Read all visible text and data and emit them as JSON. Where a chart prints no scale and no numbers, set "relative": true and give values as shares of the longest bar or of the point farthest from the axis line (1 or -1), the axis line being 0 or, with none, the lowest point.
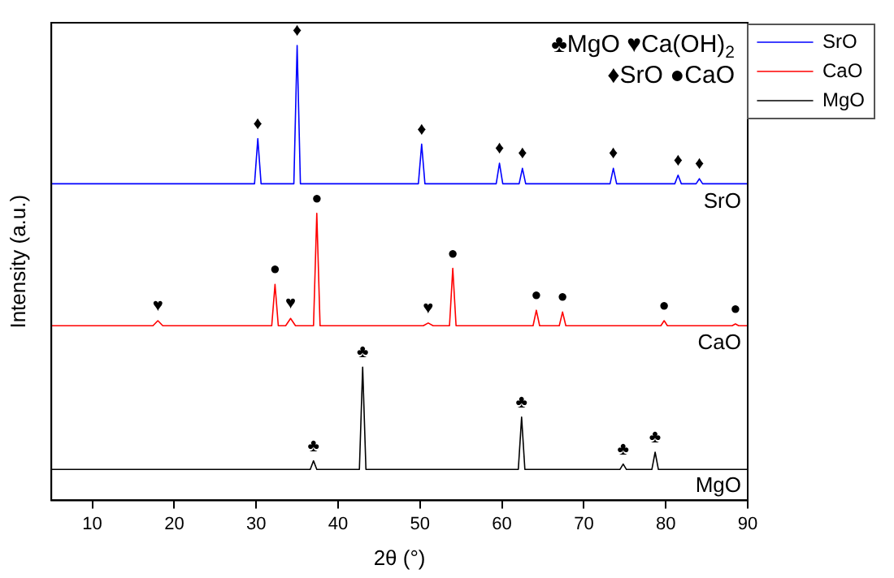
{
  "chart_data": {
    "type": "line",
    "xlabel": "2θ (°)",
    "ylabel": "Intensity (a.u.)",
    "relative": true,
    "xlim": [
      5,
      90
    ],
    "xticks": [
      10,
      20,
      30,
      40,
      50,
      60,
      70,
      80,
      90
    ],
    "grid": false,
    "legend": "top right",
    "marker": "none",
    "line_style": "solid",
    "series": [
      {
        "name": "SrO",
        "color": "#0000ff",
        "x": [
          5,
          29.8,
          30.2,
          30.6,
          34.6,
          35,
          35.4,
          49.8,
          50.2,
          50.6,
          59.3,
          59.7,
          60.1,
          62.1,
          62.5,
          62.9,
          73.2,
          73.6,
          74,
          81.1,
          81.5,
          81.9,
          83.7,
          84.1,
          84.5,
          90
        ],
        "values": [
          0.696,
          0.696,
          0.795,
          0.696,
          0.696,
          1.0,
          0.696,
          0.696,
          0.783,
          0.696,
          0.696,
          0.741,
          0.696,
          0.696,
          0.73,
          0.696,
          0.696,
          0.73,
          0.696,
          0.696,
          0.715,
          0.696,
          0.696,
          0.707,
          0.696,
          0.696
        ]
      },
      {
        "name": "CaO",
        "color": "#ff0000",
        "x": [
          5,
          17.4,
          18,
          18.6,
          31.9,
          32.3,
          32.7,
          33.6,
          34.2,
          34.8,
          37,
          37.4,
          37.8,
          50.4,
          51,
          51.6,
          53.6,
          54,
          54.4,
          63.8,
          64.2,
          64.6,
          67,
          67.4,
          67.8,
          79.4,
          79.8,
          80.2,
          88.1,
          88.5,
          88.9,
          90
        ],
        "values": [
          0.384,
          0.384,
          0.395,
          0.384,
          0.384,
          0.475,
          0.384,
          0.384,
          0.4,
          0.384,
          0.384,
          0.631,
          0.384,
          0.384,
          0.39,
          0.384,
          0.384,
          0.51,
          0.384,
          0.384,
          0.418,
          0.384,
          0.384,
          0.414,
          0.384,
          0.384,
          0.395,
          0.384,
          0.384,
          0.388,
          0.384,
          0.384
        ]
      },
      {
        "name": "MgO",
        "color": "#000000",
        "x": [
          5,
          36.6,
          37,
          37.4,
          42.6,
          43,
          43.4,
          62,
          62.4,
          62.8,
          74.4,
          74.8,
          75.2,
          78.3,
          78.7,
          79.1,
          90
        ],
        "values": [
          0.068,
          0.068,
          0.087,
          0.068,
          0.068,
          0.293,
          0.068,
          0.068,
          0.183,
          0.068,
          0.068,
          0.08,
          0.068,
          0.068,
          0.106,
          0.068,
          0.068
        ]
      }
    ],
    "annotations": [
      "♣MgO ♥Ca(OH)$_{2}$",
      "♦SrO ●CaO",
      {
        "text": "♦",
        "x": 30.2,
        "y": 0.795
      },
      {
        "text": "♦",
        "x": 35,
        "y": 1.0
      },
      {
        "text": "♦",
        "x": 50.2,
        "y": 0.783
      },
      {
        "text": "♦",
        "x": 59.7,
        "y": 0.741
      },
      {
        "text": "♦",
        "x": 62.5,
        "y": 0.73
      },
      {
        "text": "♦",
        "x": 73.6,
        "y": 0.73
      },
      {
        "text": "♦",
        "x": 81.5,
        "y": 0.715
      },
      {
        "text": "♦",
        "x": 84.1,
        "y": 0.707
      },
      {
        "text": "♥",
        "x": 18,
        "y": 0.395
      },
      {
        "text": "●",
        "x": 32.3,
        "y": 0.475
      },
      {
        "text": "♥",
        "x": 34.2,
        "y": 0.4
      },
      {
        "text": "●",
        "x": 37.4,
        "y": 0.631
      },
      {
        "text": "♥",
        "x": 51,
        "y": 0.39
      },
      {
        "text": "●",
        "x": 54,
        "y": 0.51
      },
      {
        "text": "●",
        "x": 64.2,
        "y": 0.418
      },
      {
        "text": "●",
        "x": 67.4,
        "y": 0.414
      },
      {
        "text": "●",
        "x": 79.8,
        "y": 0.395
      },
      {
        "text": "●",
        "x": 88.5,
        "y": 0.388
      },
      {
        "text": "♣",
        "x": 37,
        "y": 0.087
      },
      {
        "text": "♣",
        "x": 43,
        "y": 0.293
      },
      {
        "text": "♣",
        "x": 62.4,
        "y": 0.183
      },
      {
        "text": "♣",
        "x": 74.8,
        "y": 0.08
      },
      {
        "text": "♣",
        "x": 78.7,
        "y": 0.106
      }
    ]
  }
}
